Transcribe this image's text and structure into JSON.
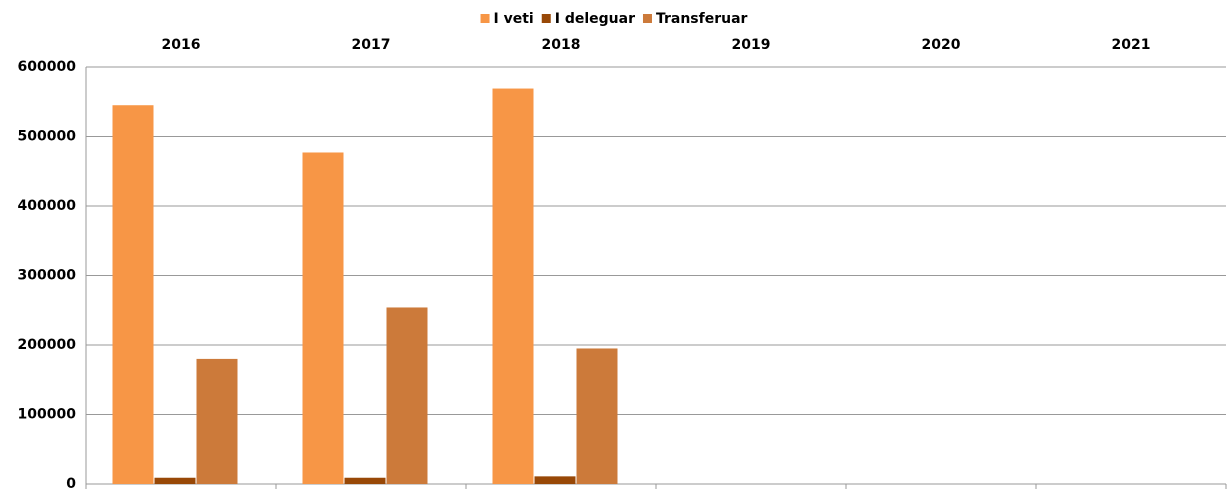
{
  "chart_data": {
    "type": "bar",
    "categories": [
      "2016",
      "2017",
      "2018",
      "2019",
      "2020",
      "2021"
    ],
    "series": [
      {
        "name": "I veti",
        "color": "#f79646",
        "values": [
          545000,
          477000,
          569000,
          null,
          null,
          null
        ]
      },
      {
        "name": "I deleguar",
        "color": "#984807",
        "values": [
          9000,
          9000,
          11000,
          null,
          null,
          null
        ]
      },
      {
        "name": "Transferuar",
        "color": "#cc7a3a",
        "values": [
          180000,
          254000,
          195000,
          null,
          null,
          null
        ]
      }
    ],
    "ylim": [
      0,
      600000
    ],
    "yticks": [
      0,
      100000,
      200000,
      300000,
      400000,
      500000,
      600000
    ],
    "grid": true,
    "legend": "top"
  }
}
